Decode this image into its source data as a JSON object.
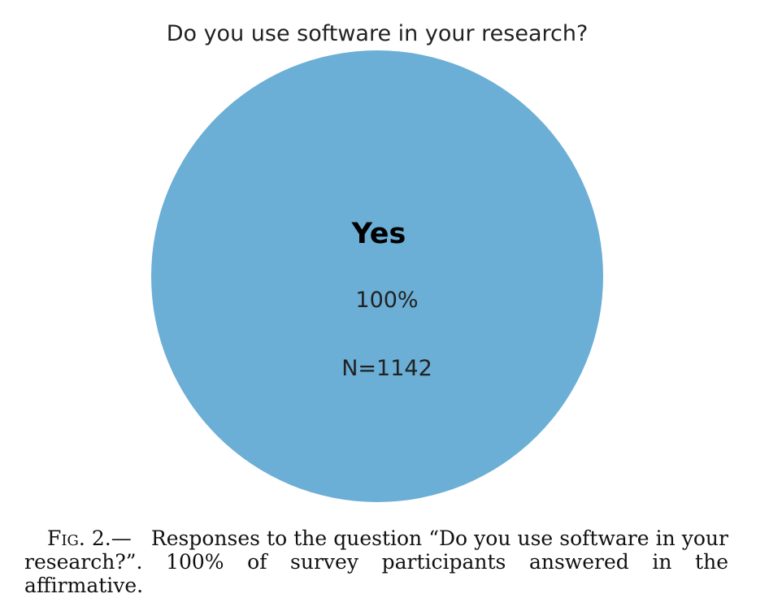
{
  "chart_data": {
    "type": "pie",
    "title": "Do you use software in your research?",
    "slices": [
      {
        "label": "Yes",
        "value": 100,
        "percent_label": "100%",
        "count_label": "N=1142",
        "color": "#6baed6"
      }
    ]
  },
  "caption": {
    "figure_label": "Fig. 2.—",
    "text": "Responses to the question “Do you use software in your research?”. 100% of survey participants answered in the affirmative."
  }
}
